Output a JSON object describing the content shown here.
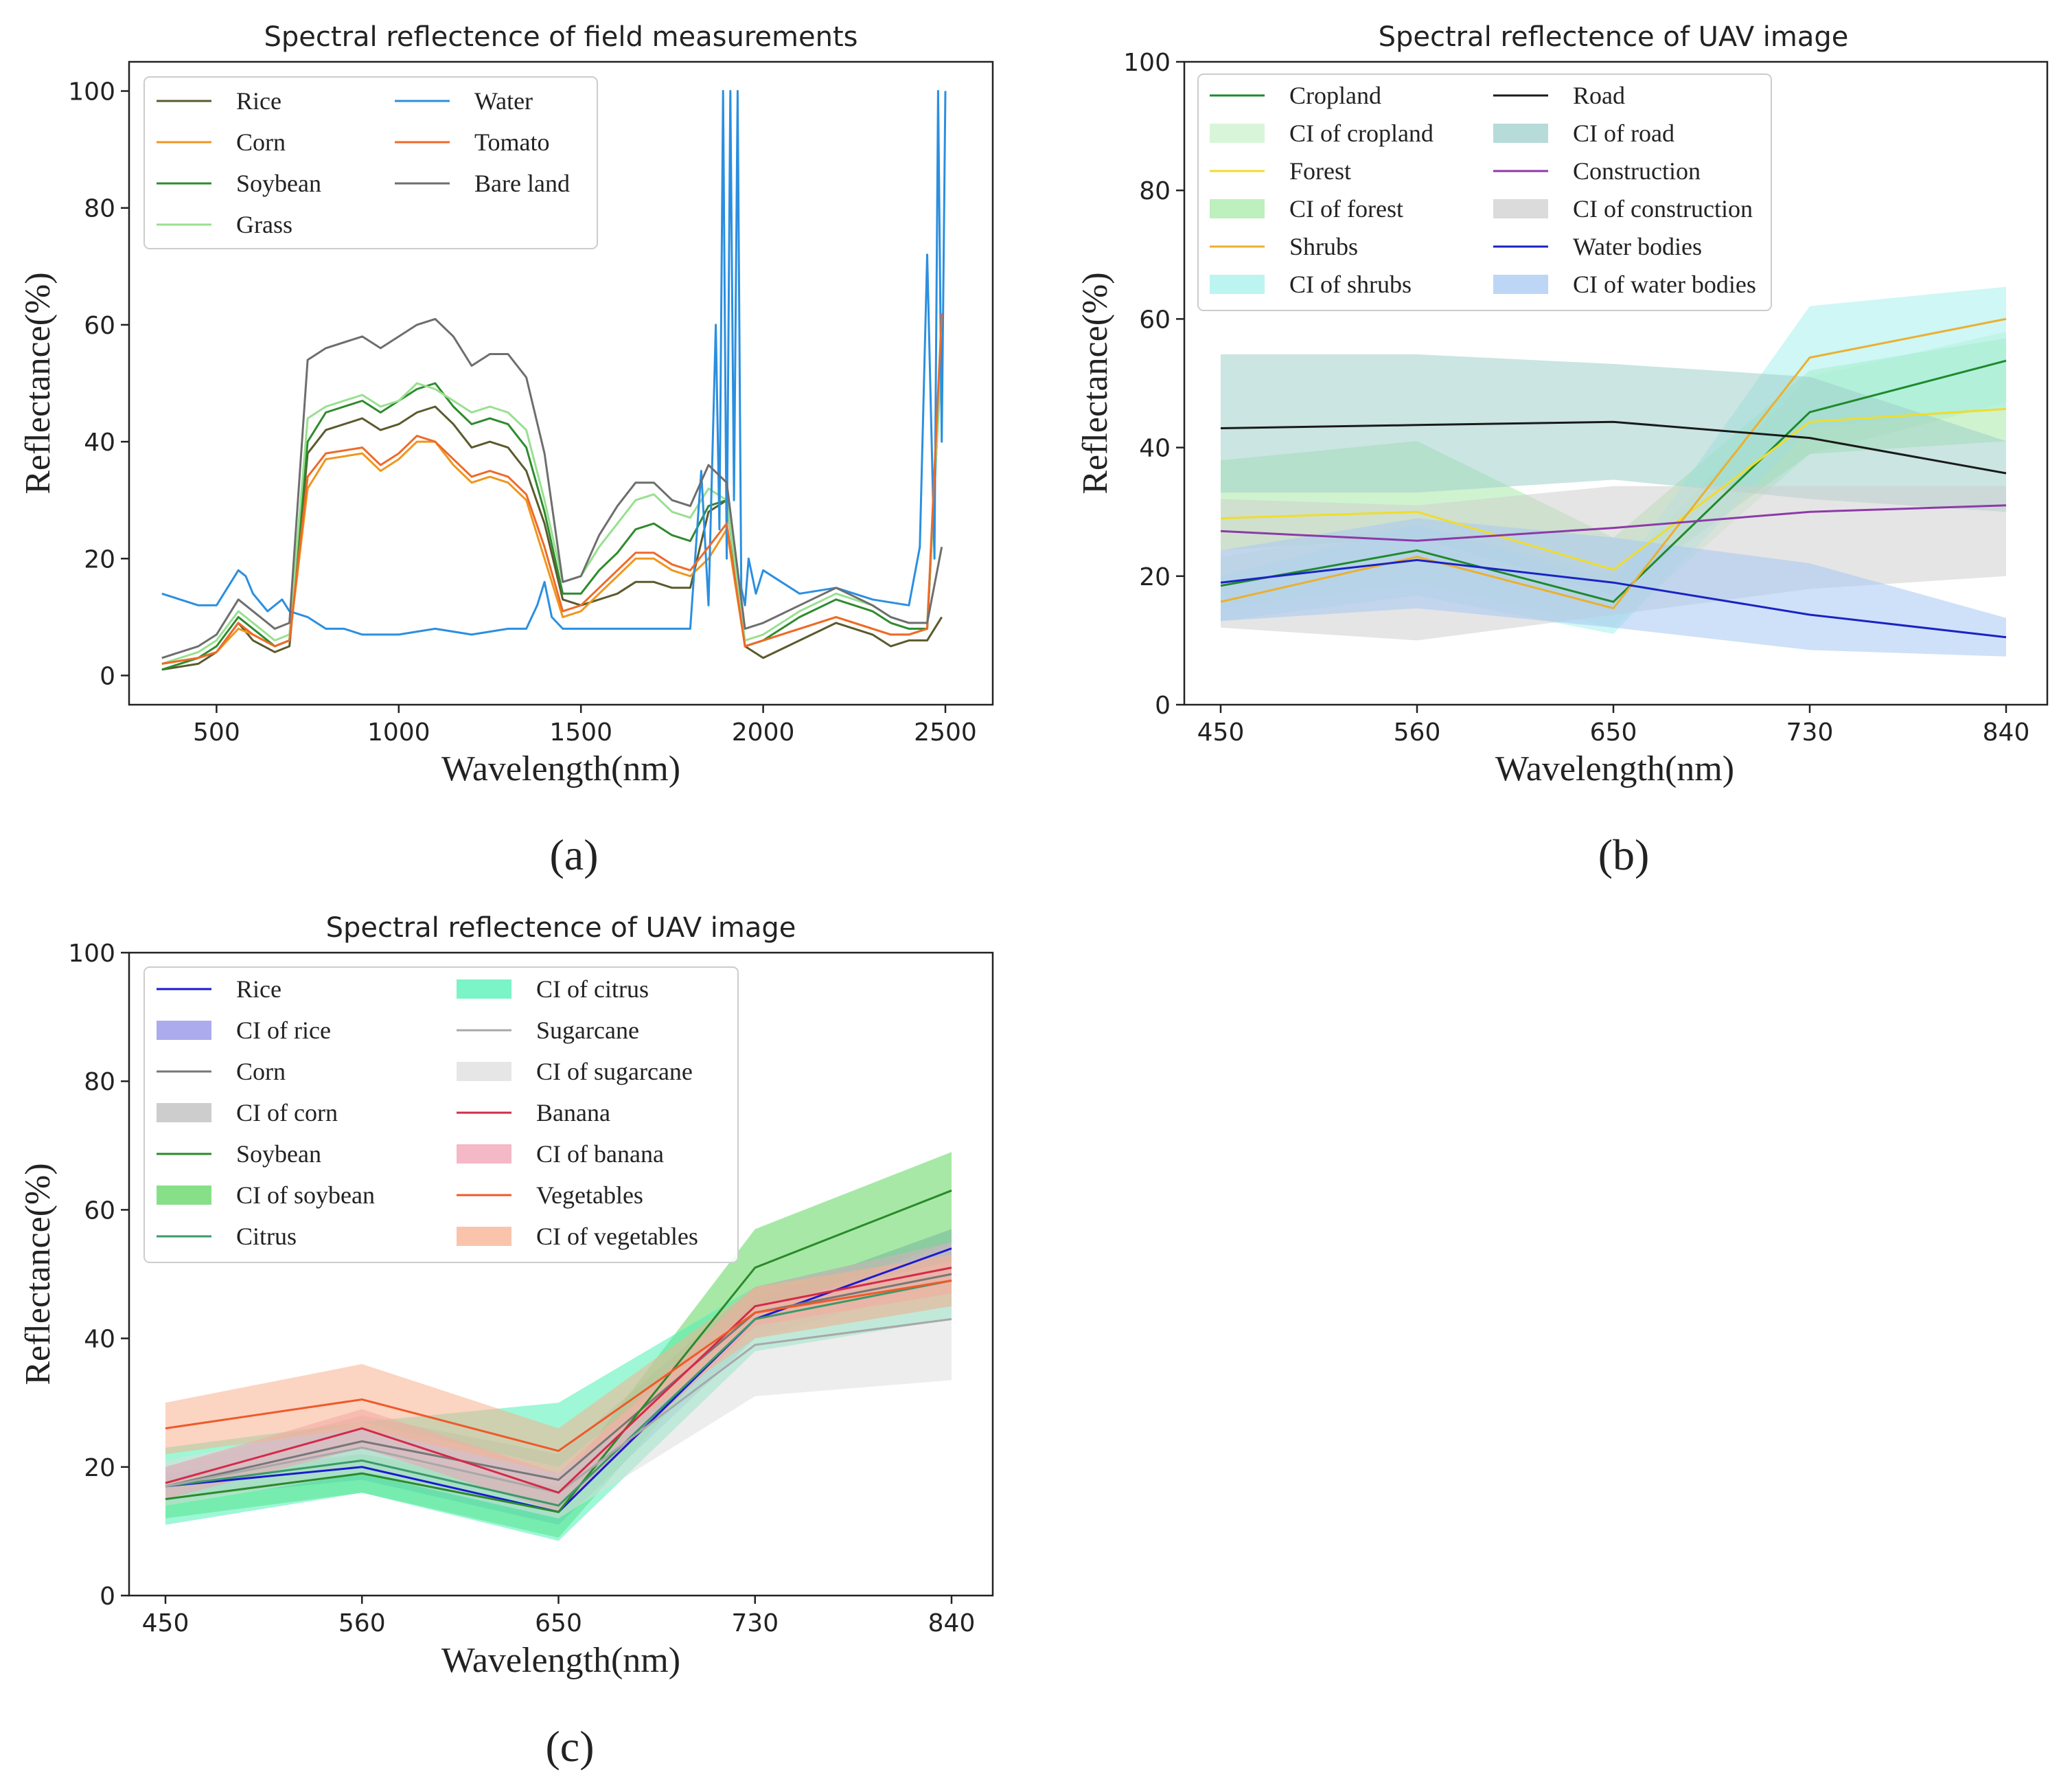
{
  "panels": [
    {
      "label": "(a)"
    },
    {
      "label": "(b)"
    },
    {
      "label": "(c)"
    }
  ],
  "chart_data": [
    {
      "type": "line",
      "title": "Spectral reflectence of field measurements",
      "xlabel": "Wavelength(nm)",
      "ylabel": "Reflectance(%)",
      "xlim": [
        260,
        2630
      ],
      "ylim": [
        -5,
        105
      ],
      "xticks": [
        500,
        1000,
        1500,
        2000,
        2500
      ],
      "yticks": [
        0,
        20,
        40,
        60,
        80,
        100
      ],
      "series": [
        {
          "name": "Rice",
          "color": "#5b5a2e",
          "x": [
            350,
            450,
            500,
            560,
            600,
            660,
            700,
            750,
            800,
            900,
            950,
            1000,
            1050,
            1100,
            1150,
            1200,
            1250,
            1300,
            1350,
            1400,
            1450,
            1500,
            1550,
            1600,
            1650,
            1700,
            1750,
            1800,
            1850,
            1900,
            1950,
            2000,
            2100,
            2200,
            2300,
            2350,
            2400,
            2450,
            2490
          ],
          "y": [
            1,
            2,
            4,
            9,
            6,
            4,
            5,
            38,
            42,
            44,
            42,
            43,
            45,
            46,
            43,
            39,
            40,
            39,
            35,
            26,
            13,
            12,
            13,
            14,
            16,
            16,
            15,
            15,
            28,
            30,
            5,
            3,
            6,
            9,
            7,
            5,
            6,
            6,
            10
          ]
        },
        {
          "name": "Corn",
          "color": "#f0961e",
          "x": [
            350,
            450,
            500,
            560,
            600,
            660,
            700,
            750,
            800,
            900,
            950,
            1000,
            1050,
            1100,
            1150,
            1200,
            1250,
            1300,
            1350,
            1400,
            1450,
            1500,
            1550,
            1600,
            1650,
            1700,
            1750,
            1800,
            1850,
            1900,
            1950,
            2000,
            2100,
            2200,
            2300,
            2350,
            2400,
            2450,
            2490
          ],
          "y": [
            2,
            3,
            4,
            8,
            7,
            5,
            6,
            32,
            37,
            38,
            35,
            37,
            40,
            40,
            36,
            33,
            34,
            33,
            30,
            20,
            10,
            11,
            14,
            17,
            20,
            20,
            18,
            17,
            20,
            25,
            5,
            6,
            8,
            10,
            8,
            7,
            7,
            8,
            58
          ]
        },
        {
          "name": "Soybean",
          "color": "#2e8b2e",
          "x": [
            350,
            450,
            500,
            560,
            600,
            660,
            700,
            750,
            800,
            900,
            950,
            1000,
            1050,
            1100,
            1150,
            1200,
            1250,
            1300,
            1350,
            1400,
            1450,
            1500,
            1550,
            1600,
            1650,
            1700,
            1750,
            1800,
            1850,
            1900,
            1950,
            2000,
            2100,
            2200,
            2300,
            2350,
            2400,
            2450,
            2490
          ],
          "y": [
            1,
            3,
            5,
            10,
            8,
            5,
            6,
            40,
            45,
            47,
            45,
            47,
            49,
            50,
            46,
            43,
            44,
            43,
            39,
            28,
            14,
            14,
            18,
            21,
            25,
            26,
            24,
            23,
            29,
            30,
            5,
            6,
            10,
            13,
            11,
            9,
            8,
            8,
            56
          ]
        },
        {
          "name": "Grass",
          "color": "#98e090",
          "x": [
            350,
            450,
            500,
            560,
            600,
            660,
            700,
            750,
            800,
            900,
            950,
            1000,
            1050,
            1100,
            1150,
            1200,
            1250,
            1300,
            1350,
            1400,
            1450,
            1500,
            1550,
            1600,
            1650,
            1700,
            1750,
            1800,
            1850,
            1900,
            1950,
            2000,
            2100,
            2200,
            2300,
            2350,
            2400,
            2450,
            2490
          ],
          "y": [
            2,
            4,
            6,
            11,
            9,
            6,
            7,
            44,
            46,
            48,
            46,
            47,
            50,
            49,
            47,
            45,
            46,
            45,
            42,
            30,
            16,
            17,
            22,
            26,
            30,
            31,
            28,
            27,
            32,
            30,
            6,
            7,
            11,
            14,
            12,
            10,
            9,
            9,
            55
          ]
        },
        {
          "name": "Water",
          "color": "#2b8fe0",
          "x": [
            350,
            400,
            450,
            500,
            530,
            560,
            580,
            600,
            640,
            680,
            700,
            750,
            800,
            850,
            900,
            950,
            1000,
            1100,
            1200,
            1300,
            1350,
            1380,
            1400,
            1420,
            1450,
            1500,
            1600,
            1700,
            1800,
            1830,
            1850,
            1870,
            1880,
            1890,
            1900,
            1910,
            1920,
            1930,
            1940,
            1950,
            1960,
            1980,
            2000,
            2050,
            2100,
            2200,
            2300,
            2400,
            2430,
            2450,
            2470,
            2480,
            2490,
            2500
          ],
          "y": [
            14,
            13,
            12,
            12,
            15,
            18,
            17,
            14,
            11,
            13,
            11,
            10,
            8,
            8,
            7,
            7,
            7,
            8,
            7,
            8,
            8,
            12,
            16,
            10,
            8,
            8,
            8,
            8,
            8,
            35,
            12,
            60,
            25,
            100,
            20,
            100,
            30,
            100,
            15,
            12,
            20,
            14,
            18,
            16,
            14,
            15,
            13,
            12,
            22,
            72,
            20,
            100,
            40,
            100
          ]
        },
        {
          "name": "Tomato",
          "color": "#ee6a2a",
          "x": [
            350,
            450,
            500,
            560,
            600,
            660,
            700,
            750,
            800,
            900,
            950,
            1000,
            1050,
            1100,
            1150,
            1200,
            1250,
            1300,
            1350,
            1400,
            1450,
            1500,
            1550,
            1600,
            1650,
            1700,
            1750,
            1800,
            1850,
            1900,
            1950,
            2000,
            2100,
            2200,
            2300,
            2350,
            2400,
            2450,
            2490
          ],
          "y": [
            2,
            3,
            4,
            9,
            7,
            5,
            6,
            34,
            38,
            39,
            36,
            38,
            41,
            40,
            37,
            34,
            35,
            34,
            31,
            22,
            11,
            12,
            15,
            18,
            21,
            21,
            19,
            18,
            22,
            26,
            5,
            6,
            8,
            10,
            8,
            7,
            7,
            8,
            62
          ]
        },
        {
          "name": "Bare land",
          "color": "#6e6e6e",
          "x": [
            350,
            450,
            500,
            560,
            600,
            660,
            700,
            750,
            800,
            900,
            950,
            1000,
            1050,
            1100,
            1150,
            1200,
            1250,
            1300,
            1350,
            1400,
            1450,
            1500,
            1550,
            1600,
            1650,
            1700,
            1750,
            1800,
            1850,
            1900,
            1950,
            2000,
            2100,
            2200,
            2300,
            2350,
            2400,
            2450,
            2490
          ],
          "y": [
            3,
            5,
            7,
            13,
            11,
            8,
            9,
            54,
            56,
            58,
            56,
            58,
            60,
            61,
            58,
            53,
            55,
            55,
            51,
            38,
            16,
            17,
            24,
            29,
            33,
            33,
            30,
            29,
            36,
            33,
            8,
            9,
            12,
            15,
            12,
            10,
            9,
            9,
            22
          ]
        }
      ]
    },
    {
      "type": "line",
      "title": "Spectral reflectence of UAV image",
      "xlabel": "Wavelength(nm)",
      "ylabel": "Reflectance(%)",
      "categories": [
        "450",
        "560",
        "650",
        "730",
        "840"
      ],
      "ylim": [
        0,
        100
      ],
      "yticks": [
        0,
        20,
        40,
        60,
        80,
        100
      ],
      "series": [
        {
          "name": "Cropland",
          "color": "#1f8a2c",
          "values": [
            18.5,
            24,
            16,
            45.5,
            53.5
          ],
          "ci_name": "CI of cropland",
          "ci_color": "#ccf2cc",
          "ci_lower": [
            15,
            19,
            12,
            39,
            47
          ],
          "ci_upper": [
            23,
            28,
            20,
            51,
            58
          ]
        },
        {
          "name": "Forest",
          "color": "#f0dc2c",
          "values": [
            29,
            30,
            21,
            44,
            46
          ],
          "ci_name": "CI of forest",
          "ci_color": "#a8eaa8",
          "ci_lower": [
            24,
            26,
            17,
            39,
            41
          ],
          "ci_upper": [
            38,
            41,
            26,
            52,
            57
          ]
        },
        {
          "name": "Shrubs",
          "color": "#ebb02e",
          "values": [
            16,
            23,
            15,
            54,
            60
          ],
          "ci_name": "CI of shrubs",
          "ci_color": "#a6f0ec",
          "ci_lower": [
            13,
            17,
            11,
            43,
            46
          ],
          "ci_upper": [
            20,
            28,
            19,
            62,
            65
          ]
        },
        {
          "name": "Road",
          "color": "#1a1a1a",
          "values": [
            43,
            43.5,
            44,
            41.5,
            36
          ],
          "ci_name": "CI of road",
          "ci_color": "#9fcfcb",
          "ci_lower": [
            33,
            33,
            35,
            32,
            30
          ],
          "ci_upper": [
            54.5,
            54.5,
            53,
            51,
            41
          ]
        },
        {
          "name": "Construction",
          "color": "#8c3aa8",
          "values": [
            27,
            25.5,
            27.5,
            30,
            31
          ],
          "ci_name": "CI of construction",
          "ci_color": "#cfcfcf",
          "ci_lower": [
            12,
            10,
            14,
            18,
            20
          ],
          "ci_upper": [
            32,
            31,
            34,
            34,
            34
          ]
        },
        {
          "name": "Water bodies",
          "color": "#1a23c4",
          "values": [
            19,
            22.5,
            19,
            14,
            10.5
          ],
          "ci_name": "CI of water bodies",
          "ci_color": "#a8c8f2",
          "ci_lower": [
            13,
            15,
            12,
            8.5,
            7.5
          ],
          "ci_upper": [
            24,
            29,
            26,
            22,
            13.5
          ]
        }
      ]
    },
    {
      "type": "line",
      "title": "Spectral reflectence of UAV image",
      "xlabel": "Wavelength(nm)",
      "ylabel": "Reflectance(%)",
      "categories": [
        "450",
        "560",
        "650",
        "730",
        "840"
      ],
      "ylim": [
        0,
        100
      ],
      "yticks": [
        0,
        20,
        40,
        60,
        80,
        100
      ],
      "series": [
        {
          "name": "Rice",
          "color": "#1a1ad0",
          "values": [
            17,
            20,
            13,
            43,
            54
          ],
          "ci_name": "CI of rice",
          "ci_color": "#8f8fe8",
          "ci_lower": [
            15,
            18,
            11,
            40,
            49
          ],
          "ci_upper": [
            19,
            22,
            15,
            46,
            57
          ]
        },
        {
          "name": "Corn",
          "color": "#777777",
          "values": [
            17,
            24,
            18,
            44,
            50
          ],
          "ci_name": "CI of corn",
          "ci_color": "#bcbcbc",
          "ci_lower": [
            14,
            20,
            14,
            40,
            45
          ],
          "ci_upper": [
            20,
            28,
            22,
            48,
            55
          ]
        },
        {
          "name": "Soybean",
          "color": "#2a8a2a",
          "values": [
            15,
            19,
            13,
            51,
            63
          ],
          "ci_name": "CI of soybean",
          "ci_color": "#5fd65f",
          "ci_lower": [
            12,
            16,
            9,
            44,
            55
          ],
          "ci_upper": [
            18,
            22,
            17,
            57,
            69
          ]
        },
        {
          "name": "Citrus",
          "color": "#3a9a6a",
          "values": [
            17,
            21,
            14,
            43,
            49
          ],
          "ci_name": "CI of citrus",
          "ci_color": "#4ff0b4",
          "ci_lower": [
            11,
            16,
            8.5,
            38,
            43
          ],
          "ci_upper": [
            23,
            27,
            30,
            48,
            55
          ]
        },
        {
          "name": "Sugarcane",
          "color": "#a8a8a8",
          "values": [
            17,
            23,
            16,
            39,
            43
          ],
          "ci_name": "CI of sugarcane",
          "ci_color": "#dedede",
          "ci_lower": [
            14,
            19,
            12,
            31,
            33.5
          ],
          "ci_upper": [
            21,
            27,
            20,
            45,
            52
          ]
        },
        {
          "name": "Banana",
          "color": "#d42a48",
          "values": [
            17.5,
            26,
            16,
            45,
            51
          ],
          "ci_name": "CI of banana",
          "ci_color": "#f0a0b4",
          "ci_lower": [
            15,
            23,
            13,
            42,
            47
          ],
          "ci_upper": [
            20,
            29,
            19,
            48,
            55
          ]
        },
        {
          "name": "Vegetables",
          "color": "#ee5a2a",
          "values": [
            26,
            30.5,
            22.5,
            44,
            49
          ],
          "ci_name": "CI of vegetables",
          "ci_color": "#f8b090",
          "ci_lower": [
            22,
            26,
            19,
            40,
            45
          ],
          "ci_upper": [
            30,
            36,
            26,
            48,
            53
          ]
        }
      ]
    }
  ]
}
